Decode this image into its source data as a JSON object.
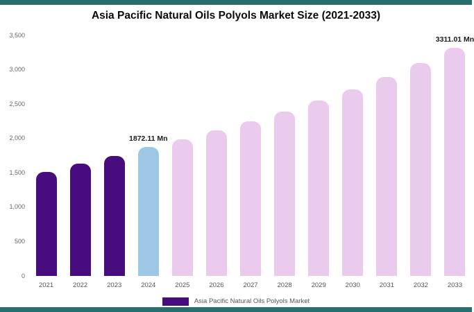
{
  "page": {
    "title": "Asia Pacific Natural Oils Polyols Market Size (2021-2033)"
  },
  "theme": {
    "accent_strip_color": "#266F6E",
    "historical_bar_color": "#470D7E",
    "highlight_bar_color": "#9CC7E5",
    "forecast_bar_color": "#EACBEE",
    "axis_text_color": "#666666",
    "value_label_color": "#1B1B1B"
  },
  "legend": {
    "swatch_color": "#470D7E",
    "label": "Asia Pacific Natural Oils Polyols Market"
  },
  "chart_data": {
    "type": "bar",
    "title": "Asia Pacific Natural Oils Polyols Market Size (2021-2033)",
    "unit": "Mn",
    "categories": [
      "2021",
      "2022",
      "2023",
      "2024",
      "2025",
      "2026",
      "2027",
      "2028",
      "2029",
      "2030",
      "2031",
      "2032",
      "2033"
    ],
    "values": [
      1510,
      1630,
      1745,
      1872.11,
      1980,
      2110,
      2245,
      2390,
      2545,
      2710,
      2890,
      3095,
      3311.01
    ],
    "bar_colors": [
      "#470D7E",
      "#470D7E",
      "#470D7E",
      "#9CC7E5",
      "#EACBEE",
      "#EACBEE",
      "#EACBEE",
      "#EACBEE",
      "#EACBEE",
      "#EACBEE",
      "#EACBEE",
      "#EACBEE",
      "#EACBEE"
    ],
    "point_labels": {
      "2024": "1872.11 Mn",
      "2033": "3311.01 Mn"
    },
    "xlabel": "",
    "ylabel": "",
    "ylim": [
      0,
      3500
    ],
    "y_ticks": [
      "0",
      "500",
      "1,000",
      "1,500",
      "2,000",
      "2,500",
      "3,000",
      "3,500"
    ],
    "y_tick_values": [
      0,
      500,
      1000,
      1500,
      2000,
      2500,
      3000,
      3500
    ],
    "grid": false,
    "legend_position": "bottom",
    "legend_entries": [
      "Asia Pacific Natural Oils Polyols Market"
    ]
  }
}
